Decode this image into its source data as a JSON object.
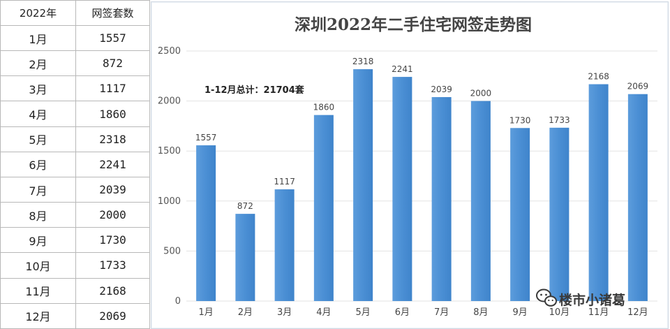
{
  "table": {
    "headers": [
      "2022年",
      "网签套数"
    ],
    "rows": [
      [
        "1月",
        "1557"
      ],
      [
        "2月",
        "872"
      ],
      [
        "3月",
        "1117"
      ],
      [
        "4月",
        "1860"
      ],
      [
        "5月",
        "2318"
      ],
      [
        "6月",
        "2241"
      ],
      [
        "7月",
        "2039"
      ],
      [
        "8月",
        "2000"
      ],
      [
        "9月",
        "1730"
      ],
      [
        "10月",
        "1733"
      ],
      [
        "11月",
        "2168"
      ],
      [
        "12月",
        "2069"
      ]
    ]
  },
  "chart_data": {
    "type": "bar",
    "title": "深圳2022年二手住宅网签走势图",
    "annotation": "1-12月总计：21704套",
    "categories": [
      "1月",
      "2月",
      "3月",
      "4月",
      "5月",
      "6月",
      "7月",
      "8月",
      "9月",
      "10月",
      "11月",
      "12月"
    ],
    "values": [
      1557,
      872,
      1117,
      1860,
      2318,
      2241,
      2039,
      2000,
      1730,
      1733,
      2168,
      2069
    ],
    "yticks": [
      "0",
      "500",
      "1000",
      "1500",
      "2000",
      "2500"
    ],
    "ylim": [
      0,
      2500
    ],
    "grid": true,
    "legend": "none",
    "bar_color": "#4f92d6"
  },
  "watermark": {
    "text": "楼市小诸葛",
    "icon": "wechat-icon"
  }
}
